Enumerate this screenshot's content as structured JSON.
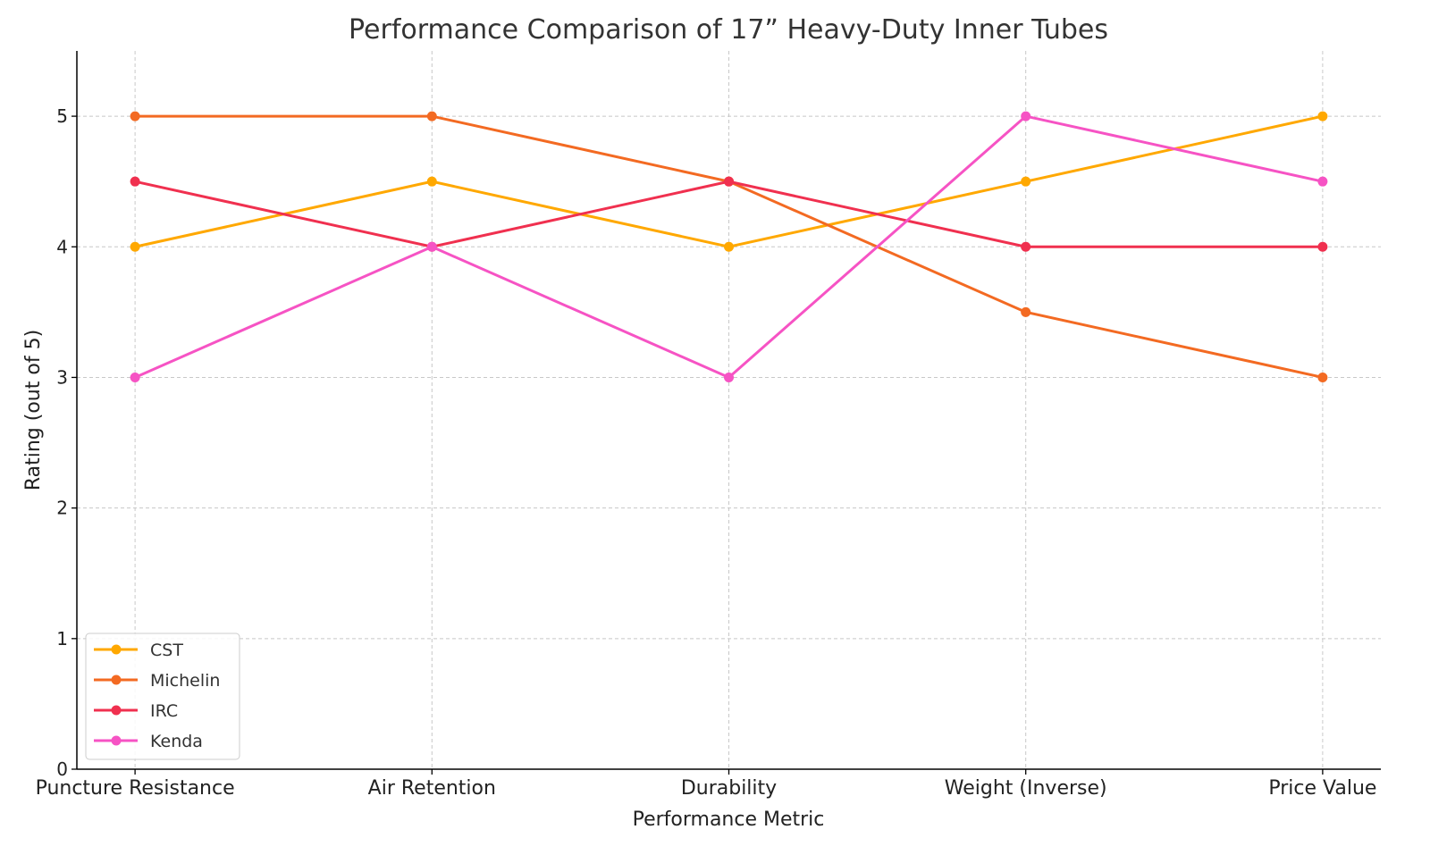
{
  "chart_data": {
    "type": "line",
    "title": "Performance Comparison of 17” Heavy-Duty Inner Tubes",
    "xlabel": "Performance Metric",
    "ylabel": "Rating (out of 5)",
    "categories": [
      "Puncture Resistance",
      "Air Retention",
      "Durability",
      "Weight (Inverse)",
      "Price Value"
    ],
    "ylim": [
      0,
      5.5
    ],
    "yticks": [
      0,
      1,
      2,
      3,
      4,
      5
    ],
    "grid": true,
    "legend_placement": "lower-left",
    "series": [
      {
        "name": "CST",
        "color": "#FFA800",
        "values": [
          4,
          4.5,
          4,
          4.5,
          5
        ]
      },
      {
        "name": "Michelin",
        "color": "#F36A22",
        "values": [
          5,
          5,
          4.5,
          3.5,
          3
        ]
      },
      {
        "name": "IRC",
        "color": "#F0304F",
        "values": [
          4.5,
          4,
          4.5,
          4,
          4
        ]
      },
      {
        "name": "Kenda",
        "color": "#F653C4",
        "values": [
          3,
          4,
          3,
          5,
          4.5
        ]
      }
    ]
  }
}
